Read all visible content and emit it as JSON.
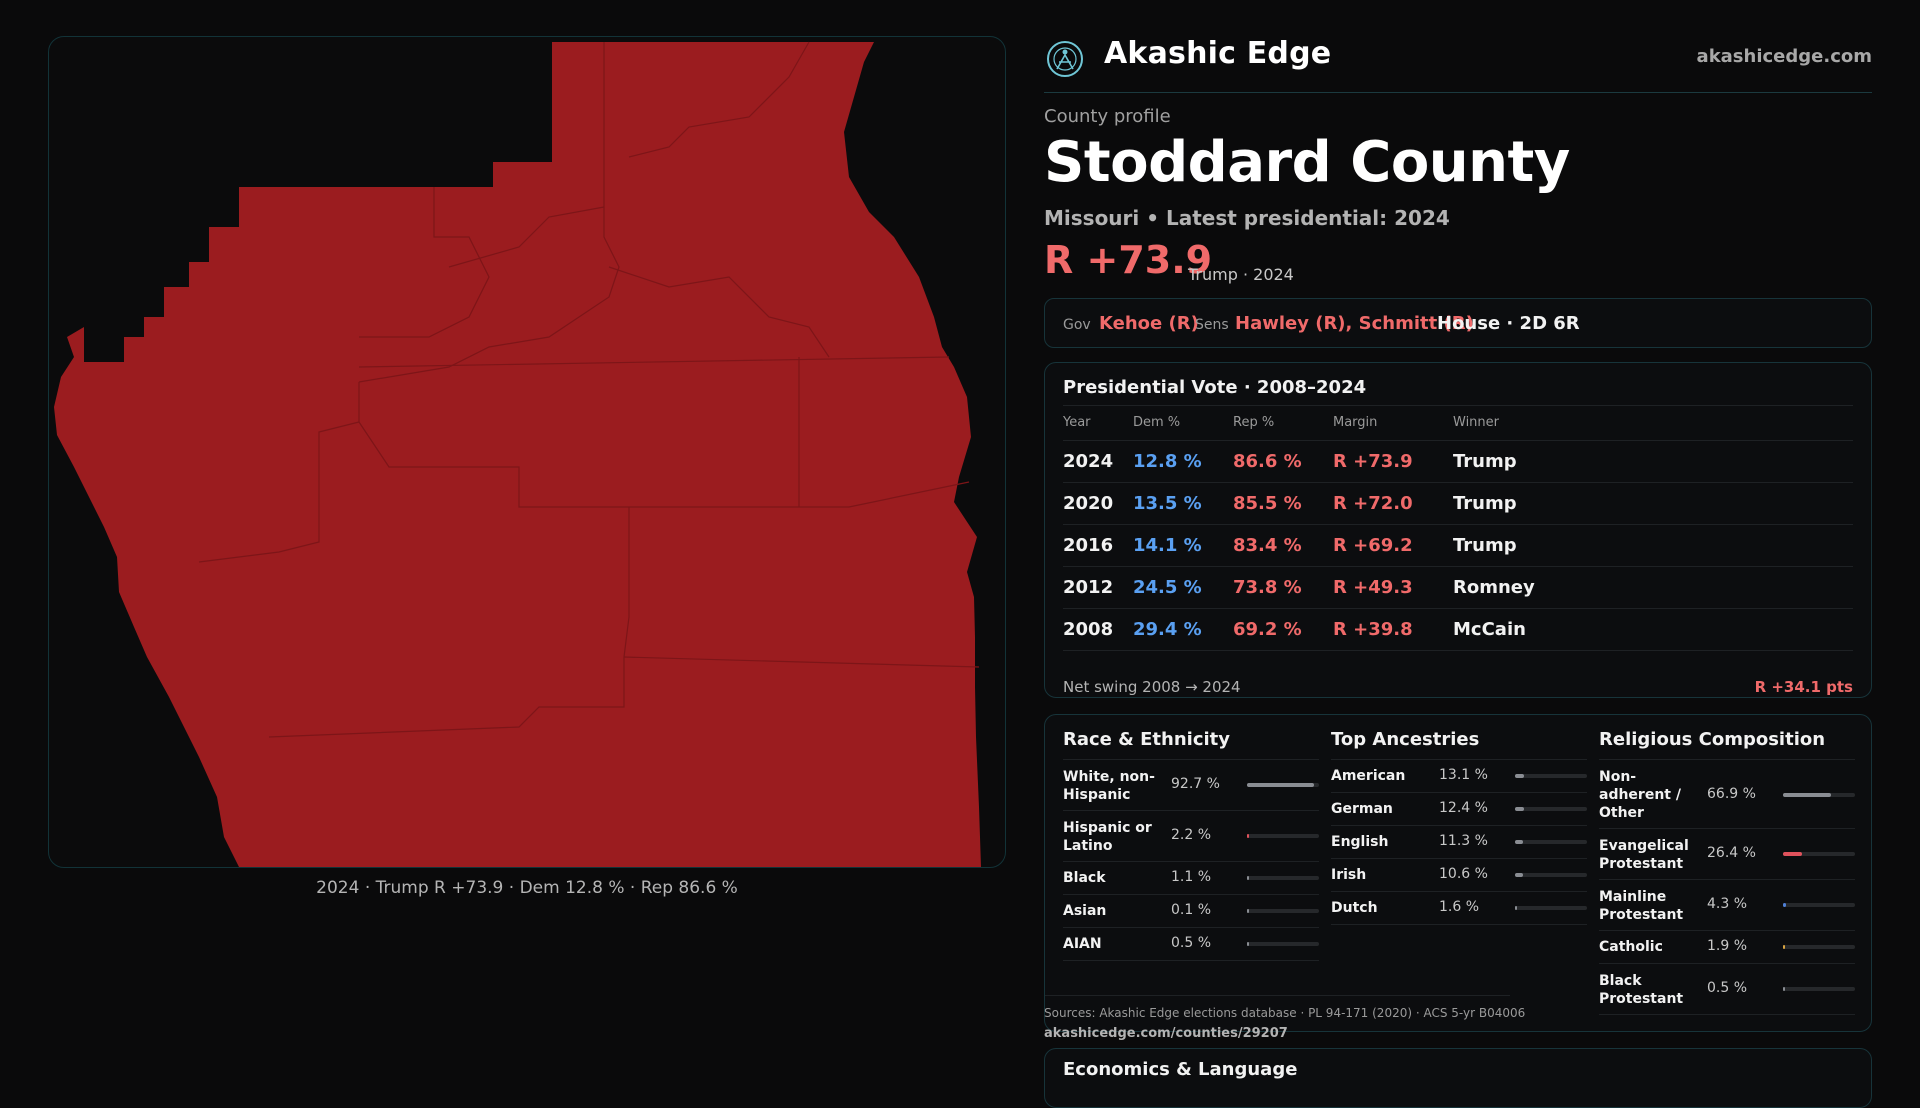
{
  "brand": {
    "name": "Akashic Edge",
    "url": "akashicedge.com"
  },
  "profile": {
    "kicker": "County profile",
    "title": "Stoddard County",
    "subtitle": "Missouri • Latest presidential: 2024",
    "margin": "R +73.9",
    "margin_note": "Trump · 2024"
  },
  "officials": {
    "gov_label": "Gov",
    "gov": "Kehoe (R)",
    "sens_label": "Sens",
    "sens": "Hawley (R), Schmitt (R)",
    "house": "House · 2D 6R"
  },
  "map": {
    "caption": "2024 · Trump R +73.9 · Dem 12.8 % · Rep 86.6 %",
    "fill_color": "#9b1c1f"
  },
  "presidential": {
    "title": "Presidential Vote · 2008–2024",
    "headers": [
      "Year",
      "Dem %",
      "Rep %",
      "Margin",
      "Winner"
    ],
    "rows": [
      {
        "year": "2024",
        "dem": "12.8 %",
        "rep": "86.6 %",
        "margin": "R +73.9",
        "winner": "Trump"
      },
      {
        "year": "2020",
        "dem": "13.5 %",
        "rep": "85.5 %",
        "margin": "R +72.0",
        "winner": "Trump"
      },
      {
        "year": "2016",
        "dem": "14.1 %",
        "rep": "83.4 %",
        "margin": "R +69.2",
        "winner": "Trump"
      },
      {
        "year": "2012",
        "dem": "24.5 %",
        "rep": "73.8 %",
        "margin": "R +49.3",
        "winner": "Romney"
      },
      {
        "year": "2008",
        "dem": "29.4 %",
        "rep": "69.2 %",
        "margin": "R +39.8",
        "winner": "McCain"
      }
    ],
    "swing_label": "Net swing 2008 → 2024",
    "swing_value": "R +34.1 pts"
  },
  "race": {
    "title": "Race & Ethnicity",
    "items": [
      {
        "name": "White, non-Hispanic",
        "value": "92.7 %",
        "share": 0.927
      },
      {
        "name": "Hispanic or Latino",
        "value": "2.2 %",
        "share": 0.022
      },
      {
        "name": "Black",
        "value": "1.1 %",
        "share": 0.011
      },
      {
        "name": "Asian",
        "value": "0.1 %",
        "share": 0.001
      },
      {
        "name": "AIAN",
        "value": "0.5 %",
        "share": 0.005
      }
    ]
  },
  "ancestry": {
    "title": "Top Ancestries",
    "items": [
      {
        "name": "American",
        "value": "13.1 %",
        "share": 0.131
      },
      {
        "name": "German",
        "value": "12.4 %",
        "share": 0.124
      },
      {
        "name": "English",
        "value": "11.3 %",
        "share": 0.113
      },
      {
        "name": "Irish",
        "value": "10.6 %",
        "share": 0.106
      },
      {
        "name": "Dutch",
        "value": "1.6 %",
        "share": 0.016
      }
    ]
  },
  "religion": {
    "title": "Religious Composition",
    "items": [
      {
        "name": "Non-adherent / Other",
        "value": "66.9 %",
        "share": 0.669,
        "color": "#8a8d93"
      },
      {
        "name": "Evangelical Protestant",
        "value": "26.4 %",
        "share": 0.264,
        "color": "#e0525c"
      },
      {
        "name": "Mainline Protestant",
        "value": "4.3 %",
        "share": 0.043,
        "color": "#4f7fd6"
      },
      {
        "name": "Catholic",
        "value": "1.9 %",
        "share": 0.019,
        "color": "#d9a441"
      },
      {
        "name": "Black Protestant",
        "value": "0.5 %",
        "share": 0.005,
        "color": "#8a8d93"
      }
    ]
  },
  "sources": {
    "text": "Sources: Akashic Edge elections database · PL 94-171 (2020) · ACS 5-yr B04006",
    "url": "akashicedge.com/counties/29207"
  },
  "economics": {
    "title": "Economics & Language"
  },
  "colors": {
    "accent_red": "#f06a6a",
    "dem_blue": "#5aa0f2",
    "border": "#17343a"
  }
}
